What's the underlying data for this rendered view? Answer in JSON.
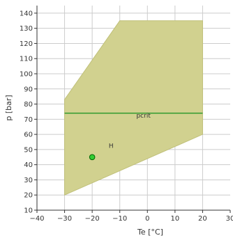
{
  "chart_data": {
    "type": "area",
    "xlabel": "Te [°C]",
    "ylabel": "p [bar]",
    "xlim": [
      -40,
      30
    ],
    "ylim": [
      10,
      145
    ],
    "xticks": [
      -40,
      -30,
      -20,
      -10,
      0,
      10,
      20,
      30
    ],
    "yticks": [
      10,
      20,
      30,
      40,
      50,
      60,
      70,
      80,
      90,
      100,
      110,
      120,
      130,
      140
    ],
    "grid": true,
    "region": {
      "color": "#d1d18f",
      "edge_color": "#c0c07a",
      "points": [
        {
          "x": -30,
          "y": 20
        },
        {
          "x": -30,
          "y": 83
        },
        {
          "x": -10,
          "y": 135
        },
        {
          "x": 20,
          "y": 135
        },
        {
          "x": 20,
          "y": 60
        }
      ]
    },
    "lines": [
      {
        "label": "pcrit",
        "color": "#2e9a2e",
        "x": [
          -30,
          20
        ],
        "y": [
          74,
          74
        ],
        "label_x": -4,
        "label_y": 71
      }
    ],
    "points": [
      {
        "label": "H",
        "color": "#33cc33",
        "x": -20,
        "y": 45,
        "label_x": -14,
        "label_y": 51
      }
    ]
  }
}
